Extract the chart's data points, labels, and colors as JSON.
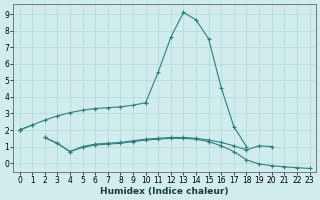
{
  "xlabel": "Humidex (Indice chaleur)",
  "line_color": "#2d7f7f",
  "bg_color": "#d0ecec",
  "grid_color": "#b0d8d8",
  "ylim": [
    -0.55,
    9.6
  ],
  "xlim": [
    -0.5,
    23.5
  ],
  "yticks": [
    0,
    1,
    2,
    3,
    4,
    5,
    6,
    7,
    8,
    9
  ],
  "xticks": [
    0,
    1,
    2,
    3,
    4,
    5,
    6,
    7,
    8,
    9,
    10,
    11,
    12,
    13,
    14,
    15,
    16,
    17,
    18,
    19,
    20,
    21,
    22,
    23
  ],
  "series": [
    [
      2.0,
      2.3,
      2.6,
      2.85,
      3.05,
      3.2,
      3.3,
      3.35,
      3.4,
      3.5,
      3.65,
      null,
      null,
      null,
      null,
      null,
      null,
      null,
      null,
      null,
      null,
      null,
      null,
      null
    ],
    [
      2.0,
      2.3,
      null,
      null,
      null,
      null,
      null,
      null,
      null,
      null,
      3.65,
      5.5,
      7.6,
      9.1,
      8.65,
      7.5,
      4.55,
      2.2,
      1.0,
      null,
      null,
      null,
      null,
      null
    ],
    [
      2.0,
      null,
      1.55,
      1.2,
      0.7,
      1.0,
      1.15,
      1.2,
      1.25,
      1.35,
      1.45,
      1.5,
      1.55,
      1.55,
      1.5,
      1.4,
      1.25,
      1.05,
      0.8,
      1.05,
      1.0,
      null,
      null,
      null
    ],
    [
      2.0,
      null,
      1.55,
      1.2,
      0.7,
      0.95,
      1.1,
      1.15,
      1.2,
      1.3,
      1.4,
      1.45,
      1.5,
      1.5,
      1.45,
      1.3,
      1.05,
      0.7,
      0.2,
      -0.05,
      -0.15,
      -0.22,
      -0.27,
      -0.32
    ]
  ],
  "figsize": [
    3.2,
    2.0
  ],
  "dpi": 100,
  "tick_labelsize": 5.5,
  "xlabel_fontsize": 6.5
}
